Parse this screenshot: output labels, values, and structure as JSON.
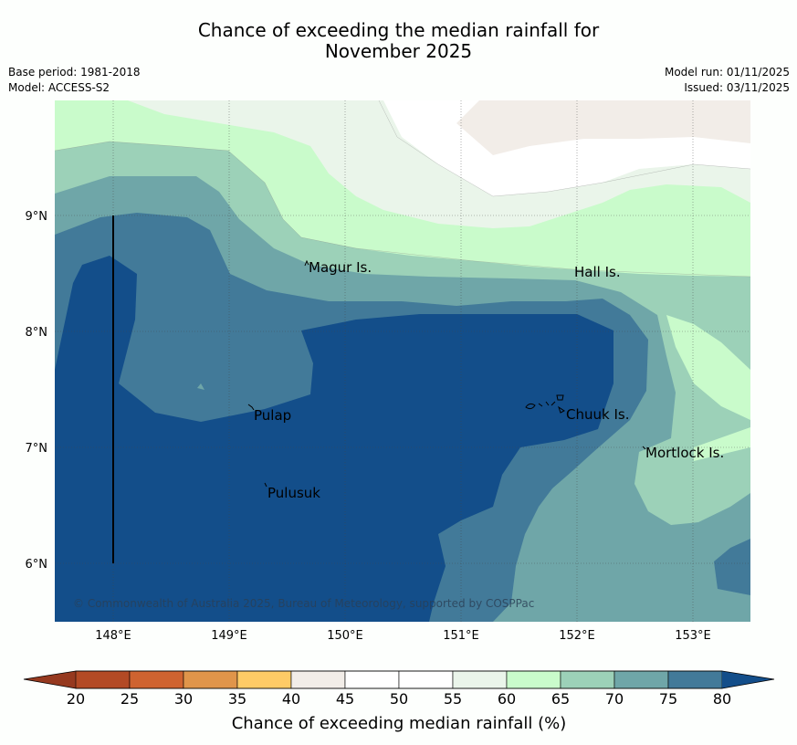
{
  "title": {
    "line1": "Chance of exceeding the median rainfall for",
    "line2": "November 2025"
  },
  "meta": {
    "base_period": "Base period: 1981-2018",
    "model": "Model: ACCESS-S2",
    "model_run": "Model run: 01/11/2025",
    "issued": "Issued: 03/11/2025"
  },
  "map": {
    "lat_labels": [
      "9°N",
      "8°N",
      "7°N",
      "6°N"
    ],
    "lon_labels": [
      "148°E",
      "149°E",
      "150°E",
      "151°E",
      "152°E",
      "153°E"
    ],
    "places": [
      "Magur Is.",
      "Hall Is.",
      "Pulap",
      "Chuuk Is.",
      "Mortlock Is.",
      "Pulusuk"
    ],
    "copyright": "© Commonwealth of Australia 2025, Bureau of Meteorology, supported by COSPPac"
  },
  "colorbar": {
    "ticks": [
      "20",
      "25",
      "30",
      "35",
      "40",
      "45",
      "50",
      "55",
      "60",
      "65",
      "70",
      "75",
      "80"
    ],
    "colors": [
      "#b34a25",
      "#cf6330",
      "#e0954a",
      "#fecb66",
      "#f2ede8",
      "#ffffff",
      "#ffffff",
      "#eaf5ea",
      "#c9fbcb",
      "#9cd1b8",
      "#6fa6a8",
      "#427a99"
    ],
    "under_color": "#96391f",
    "over_color": "#134e8a",
    "label": "Chance of exceeding median rainfall (%)"
  }
}
